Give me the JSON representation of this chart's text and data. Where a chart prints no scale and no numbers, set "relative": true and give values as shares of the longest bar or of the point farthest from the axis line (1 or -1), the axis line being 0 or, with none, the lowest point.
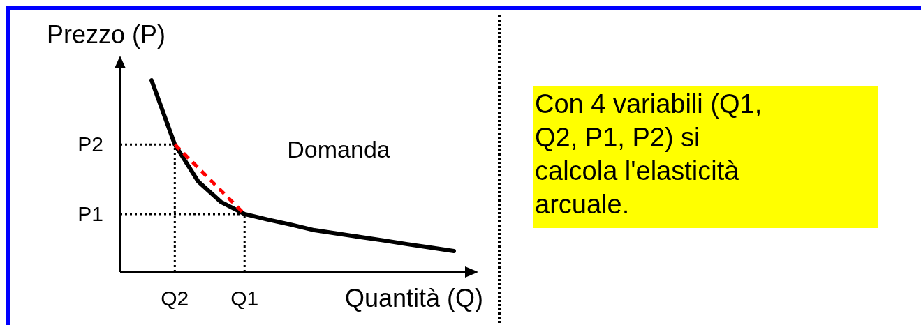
{
  "chart_data": {
    "type": "line",
    "xlabel": "Quantità (Q)",
    "ylabel": "Prezzo (P)",
    "relative": true,
    "categories": [
      null,
      "Q2",
      null,
      null,
      "Q1",
      null,
      null,
      null,
      null,
      null,
      null,
      null,
      null,
      null
    ],
    "series": [
      {
        "color": "#000000",
        "line_style": "solid",
        "values": [
          1,
          0.665,
          0.473,
          0.364,
          0.302,
          0.273,
          0.247,
          0.218,
          0.2,
          0.182,
          0.164,
          0.145,
          0.127,
          0.109
        ]
      },
      {
        "type": "line",
        "color": "#ff0000",
        "line_style": "dashed",
        "values": [
          null,
          0.665,
          0.544,
          0.423,
          0.302,
          null,
          null,
          null,
          null,
          null,
          null,
          null,
          null,
          null
        ]
      }
    ],
    "ref_lines": [
      {
        "axis": "y",
        "value": 0.665,
        "label": "P2",
        "color": "#000000",
        "line_style": "dotted"
      },
      {
        "axis": "y",
        "value": 0.302,
        "label": "P1",
        "color": "#000000",
        "line_style": "dotted"
      },
      {
        "axis": "x",
        "value": "Q2",
        "color": "#000000",
        "line_style": "dotted"
      },
      {
        "axis": "x",
        "value": "Q1",
        "color": "#000000",
        "line_style": "dotted"
      }
    ],
    "annotations": [
      "Domanda",
      "Con 4 variabili (Q1, Q2, P1, P2) si calcola l'elasticità arcuale."
    ]
  }
}
